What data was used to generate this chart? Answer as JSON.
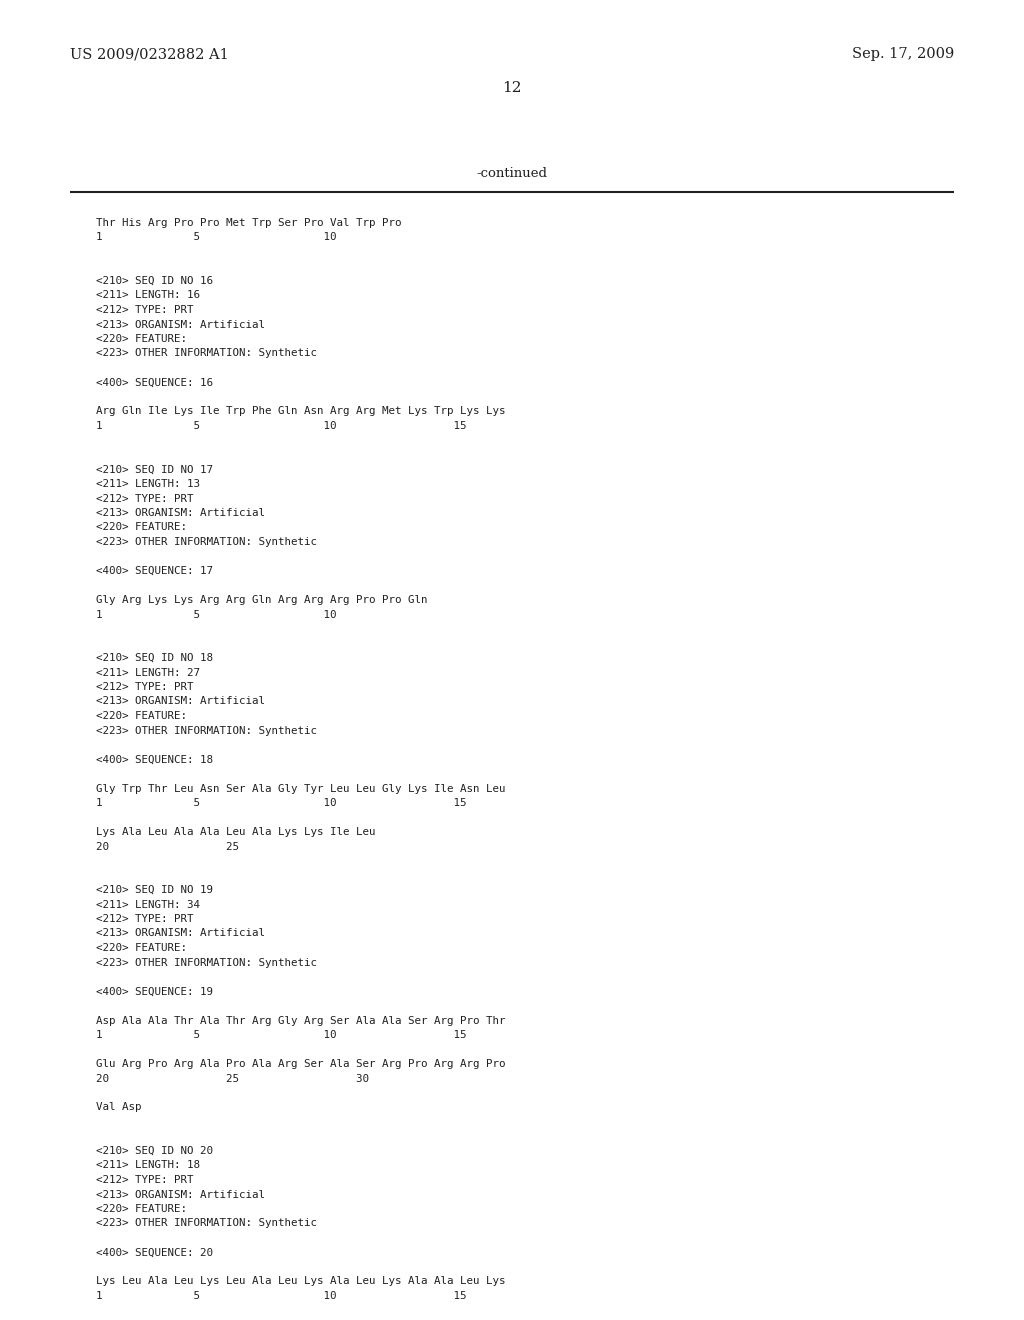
{
  "header_left": "US 2009/0232882 A1",
  "header_right": "Sep. 17, 2009",
  "page_number": "12",
  "continued_label": "-continued",
  "background_color": "#ffffff",
  "text_color": "#231f20",
  "line_color": "#231f20",
  "header_font_size": 10.5,
  "page_num_font_size": 11,
  "continued_font_size": 9.5,
  "mono_font_size": 7.8,
  "content": [
    {
      "text": "Thr His Arg Pro Pro Met Trp Ser Pro Val Trp Pro",
      "indent": false,
      "blank_before": false
    },
    {
      "text": "1              5                   10",
      "indent": false,
      "blank_before": false
    },
    {
      "text": "",
      "indent": false,
      "blank_before": false
    },
    {
      "text": "",
      "indent": false,
      "blank_before": false
    },
    {
      "text": "<210> SEQ ID NO 16",
      "indent": false,
      "blank_before": false
    },
    {
      "text": "<211> LENGTH: 16",
      "indent": false,
      "blank_before": false
    },
    {
      "text": "<212> TYPE: PRT",
      "indent": false,
      "blank_before": false
    },
    {
      "text": "<213> ORGANISM: Artificial",
      "indent": false,
      "blank_before": false
    },
    {
      "text": "<220> FEATURE:",
      "indent": false,
      "blank_before": false
    },
    {
      "text": "<223> OTHER INFORMATION: Synthetic",
      "indent": false,
      "blank_before": false
    },
    {
      "text": "",
      "indent": false,
      "blank_before": false
    },
    {
      "text": "<400> SEQUENCE: 16",
      "indent": false,
      "blank_before": false
    },
    {
      "text": "",
      "indent": false,
      "blank_before": false
    },
    {
      "text": "Arg Gln Ile Lys Ile Trp Phe Gln Asn Arg Arg Met Lys Trp Lys Lys",
      "indent": false,
      "blank_before": false
    },
    {
      "text": "1              5                   10                  15",
      "indent": false,
      "blank_before": false
    },
    {
      "text": "",
      "indent": false,
      "blank_before": false
    },
    {
      "text": "",
      "indent": false,
      "blank_before": false
    },
    {
      "text": "<210> SEQ ID NO 17",
      "indent": false,
      "blank_before": false
    },
    {
      "text": "<211> LENGTH: 13",
      "indent": false,
      "blank_before": false
    },
    {
      "text": "<212> TYPE: PRT",
      "indent": false,
      "blank_before": false
    },
    {
      "text": "<213> ORGANISM: Artificial",
      "indent": false,
      "blank_before": false
    },
    {
      "text": "<220> FEATURE:",
      "indent": false,
      "blank_before": false
    },
    {
      "text": "<223> OTHER INFORMATION: Synthetic",
      "indent": false,
      "blank_before": false
    },
    {
      "text": "",
      "indent": false,
      "blank_before": false
    },
    {
      "text": "<400> SEQUENCE: 17",
      "indent": false,
      "blank_before": false
    },
    {
      "text": "",
      "indent": false,
      "blank_before": false
    },
    {
      "text": "Gly Arg Lys Lys Arg Arg Gln Arg Arg Arg Pro Pro Gln",
      "indent": false,
      "blank_before": false
    },
    {
      "text": "1              5                   10",
      "indent": false,
      "blank_before": false
    },
    {
      "text": "",
      "indent": false,
      "blank_before": false
    },
    {
      "text": "",
      "indent": false,
      "blank_before": false
    },
    {
      "text": "<210> SEQ ID NO 18",
      "indent": false,
      "blank_before": false
    },
    {
      "text": "<211> LENGTH: 27",
      "indent": false,
      "blank_before": false
    },
    {
      "text": "<212> TYPE: PRT",
      "indent": false,
      "blank_before": false
    },
    {
      "text": "<213> ORGANISM: Artificial",
      "indent": false,
      "blank_before": false
    },
    {
      "text": "<220> FEATURE:",
      "indent": false,
      "blank_before": false
    },
    {
      "text": "<223> OTHER INFORMATION: Synthetic",
      "indent": false,
      "blank_before": false
    },
    {
      "text": "",
      "indent": false,
      "blank_before": false
    },
    {
      "text": "<400> SEQUENCE: 18",
      "indent": false,
      "blank_before": false
    },
    {
      "text": "",
      "indent": false,
      "blank_before": false
    },
    {
      "text": "Gly Trp Thr Leu Asn Ser Ala Gly Tyr Leu Leu Gly Lys Ile Asn Leu",
      "indent": false,
      "blank_before": false
    },
    {
      "text": "1              5                   10                  15",
      "indent": false,
      "blank_before": false
    },
    {
      "text": "",
      "indent": false,
      "blank_before": false
    },
    {
      "text": "Lys Ala Leu Ala Ala Leu Ala Lys Lys Ile Leu",
      "indent": false,
      "blank_before": false
    },
    {
      "text": "20                  25",
      "indent": false,
      "blank_before": false
    },
    {
      "text": "",
      "indent": false,
      "blank_before": false
    },
    {
      "text": "",
      "indent": false,
      "blank_before": false
    },
    {
      "text": "<210> SEQ ID NO 19",
      "indent": false,
      "blank_before": false
    },
    {
      "text": "<211> LENGTH: 34",
      "indent": false,
      "blank_before": false
    },
    {
      "text": "<212> TYPE: PRT",
      "indent": false,
      "blank_before": false
    },
    {
      "text": "<213> ORGANISM: Artificial",
      "indent": false,
      "blank_before": false
    },
    {
      "text": "<220> FEATURE:",
      "indent": false,
      "blank_before": false
    },
    {
      "text": "<223> OTHER INFORMATION: Synthetic",
      "indent": false,
      "blank_before": false
    },
    {
      "text": "",
      "indent": false,
      "blank_before": false
    },
    {
      "text": "<400> SEQUENCE: 19",
      "indent": false,
      "blank_before": false
    },
    {
      "text": "",
      "indent": false,
      "blank_before": false
    },
    {
      "text": "Asp Ala Ala Thr Ala Thr Arg Gly Arg Ser Ala Ala Ser Arg Pro Thr",
      "indent": false,
      "blank_before": false
    },
    {
      "text": "1              5                   10                  15",
      "indent": false,
      "blank_before": false
    },
    {
      "text": "",
      "indent": false,
      "blank_before": false
    },
    {
      "text": "Glu Arg Pro Arg Ala Pro Ala Arg Ser Ala Ser Arg Pro Arg Arg Pro",
      "indent": false,
      "blank_before": false
    },
    {
      "text": "20                  25                  30",
      "indent": false,
      "blank_before": false
    },
    {
      "text": "",
      "indent": false,
      "blank_before": false
    },
    {
      "text": "Val Asp",
      "indent": false,
      "blank_before": false
    },
    {
      "text": "",
      "indent": false,
      "blank_before": false
    },
    {
      "text": "",
      "indent": false,
      "blank_before": false
    },
    {
      "text": "<210> SEQ ID NO 20",
      "indent": false,
      "blank_before": false
    },
    {
      "text": "<211> LENGTH: 18",
      "indent": false,
      "blank_before": false
    },
    {
      "text": "<212> TYPE: PRT",
      "indent": false,
      "blank_before": false
    },
    {
      "text": "<213> ORGANISM: Artificial",
      "indent": false,
      "blank_before": false
    },
    {
      "text": "<220> FEATURE:",
      "indent": false,
      "blank_before": false
    },
    {
      "text": "<223> OTHER INFORMATION: Synthetic",
      "indent": false,
      "blank_before": false
    },
    {
      "text": "",
      "indent": false,
      "blank_before": false
    },
    {
      "text": "<400> SEQUENCE: 20",
      "indent": false,
      "blank_before": false
    },
    {
      "text": "",
      "indent": false,
      "blank_before": false
    },
    {
      "text": "Lys Leu Ala Leu Lys Leu Ala Leu Lys Ala Leu Lys Ala Ala Leu Lys",
      "indent": false,
      "blank_before": false
    },
    {
      "text": "1              5                   10                  15",
      "indent": false,
      "blank_before": false
    }
  ]
}
